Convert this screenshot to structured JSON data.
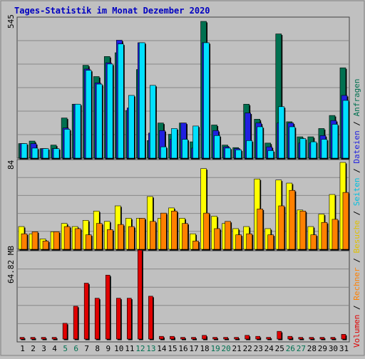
{
  "title": "Tages-Statistik im Monat Dezember 2020",
  "colors": {
    "background": "#c0c0c0",
    "panel": "#c0c0c0",
    "grid": "#888888",
    "title": "#0000c0",
    "anfragen": "#007050",
    "dateien": "#2020e0",
    "seiten": "#00e0ff",
    "besuche": "#ffff00",
    "rechner": "#ff8000",
    "volumen": "#e00000",
    "weekend_label": "#007050",
    "weekday_label": "#000000"
  },
  "chart_data": [
    {
      "type": "bar",
      "panel": "top",
      "ymax_label": "545",
      "ymax": 545,
      "categories": [
        "1",
        "2",
        "3",
        "4",
        "5",
        "6",
        "7",
        "8",
        "9",
        "10",
        "11",
        "12",
        "13",
        "14",
        "15",
        "16",
        "17",
        "18",
        "19",
        "20",
        "21",
        "22",
        "23",
        "24",
        "25",
        "26",
        "27",
        "28",
        "29",
        "30",
        "31"
      ],
      "weekend": [
        "5",
        "6",
        "12",
        "13",
        "19",
        "20",
        "26",
        "27"
      ],
      "series": [
        {
          "name": "Anfragen",
          "values": [
            58,
            68,
            38,
            52,
            160,
            215,
            370,
            325,
            405,
            420,
            190,
            353,
            70,
            140,
            95,
            140,
            65,
            545,
            132,
            52,
            42,
            215,
            155,
            60,
            495,
            145,
            85,
            85,
            118,
            170,
            360
          ]
        },
        {
          "name": "Dateien",
          "values": [
            58,
            58,
            38,
            38,
            120,
            215,
            355,
            300,
            380,
            470,
            200,
            460,
            100,
            110,
            75,
            140,
            40,
            460,
            110,
            45,
            38,
            180,
            140,
            45,
            140,
            140,
            60,
            60,
            90,
            150,
            250
          ]
        },
        {
          "name": "Seiten",
          "values": [
            58,
            40,
            38,
            38,
            115,
            215,
            350,
            295,
            375,
            455,
            250,
            460,
            290,
            45,
            118,
            75,
            128,
            460,
            90,
            40,
            33,
            70,
            125,
            30,
            205,
            125,
            78,
            65,
            75,
            135,
            230
          ]
        }
      ],
      "legend": [
        "Anfragen",
        "Dateien",
        "Seiten"
      ]
    },
    {
      "type": "bar",
      "panel": "middle",
      "ymax_label": "84",
      "ymax": 84,
      "series": [
        {
          "name": "Besuche",
          "values": [
            22,
            15,
            10,
            17,
            25,
            22,
            28,
            37,
            27,
            42,
            30,
            30,
            51,
            30,
            40,
            30,
            15,
            78,
            32,
            25,
            20,
            22,
            68,
            20,
            67,
            64,
            38,
            22,
            34,
            53,
            84
          ]
        },
        {
          "name": "Rechner",
          "values": [
            15,
            17,
            8,
            17,
            22,
            20,
            14,
            25,
            19,
            24,
            22,
            30,
            27,
            35,
            37,
            25,
            8,
            35,
            20,
            27,
            14,
            15,
            39,
            14,
            42,
            57,
            37,
            14,
            26,
            29,
            55
          ]
        }
      ],
      "legend": [
        "Besuche",
        "Rechner"
      ]
    },
    {
      "type": "bar",
      "panel": "bottom",
      "ymax_label": "64.82 MB",
      "series": [
        {
          "name": "Volumen",
          "values": [
            1,
            1,
            1,
            1,
            15,
            32,
            55,
            40,
            63,
            40,
            40,
            88,
            42,
            2,
            2,
            1,
            1,
            3,
            1,
            1,
            1,
            3,
            2,
            1,
            7,
            2,
            1,
            1,
            1,
            1,
            4
          ]
        }
      ],
      "legend": [
        "Volumen"
      ]
    }
  ],
  "right_legend": [
    {
      "text": "Volumen",
      "color": "#e00000"
    },
    {
      "text": " / ",
      "color": "#000000"
    },
    {
      "text": "Rechner",
      "color": "#ff8000"
    },
    {
      "text": " / ",
      "color": "#000000"
    },
    {
      "text": "Besuche",
      "color": "#e0c000"
    },
    {
      "text": " / ",
      "color": "#000000"
    },
    {
      "text": "Seiten",
      "color": "#00c0e0"
    },
    {
      "text": " / ",
      "color": "#000000"
    },
    {
      "text": "Dateien",
      "color": "#2020e0"
    },
    {
      "text": " / ",
      "color": "#000000"
    },
    {
      "text": "Anfragen",
      "color": "#007050"
    }
  ]
}
